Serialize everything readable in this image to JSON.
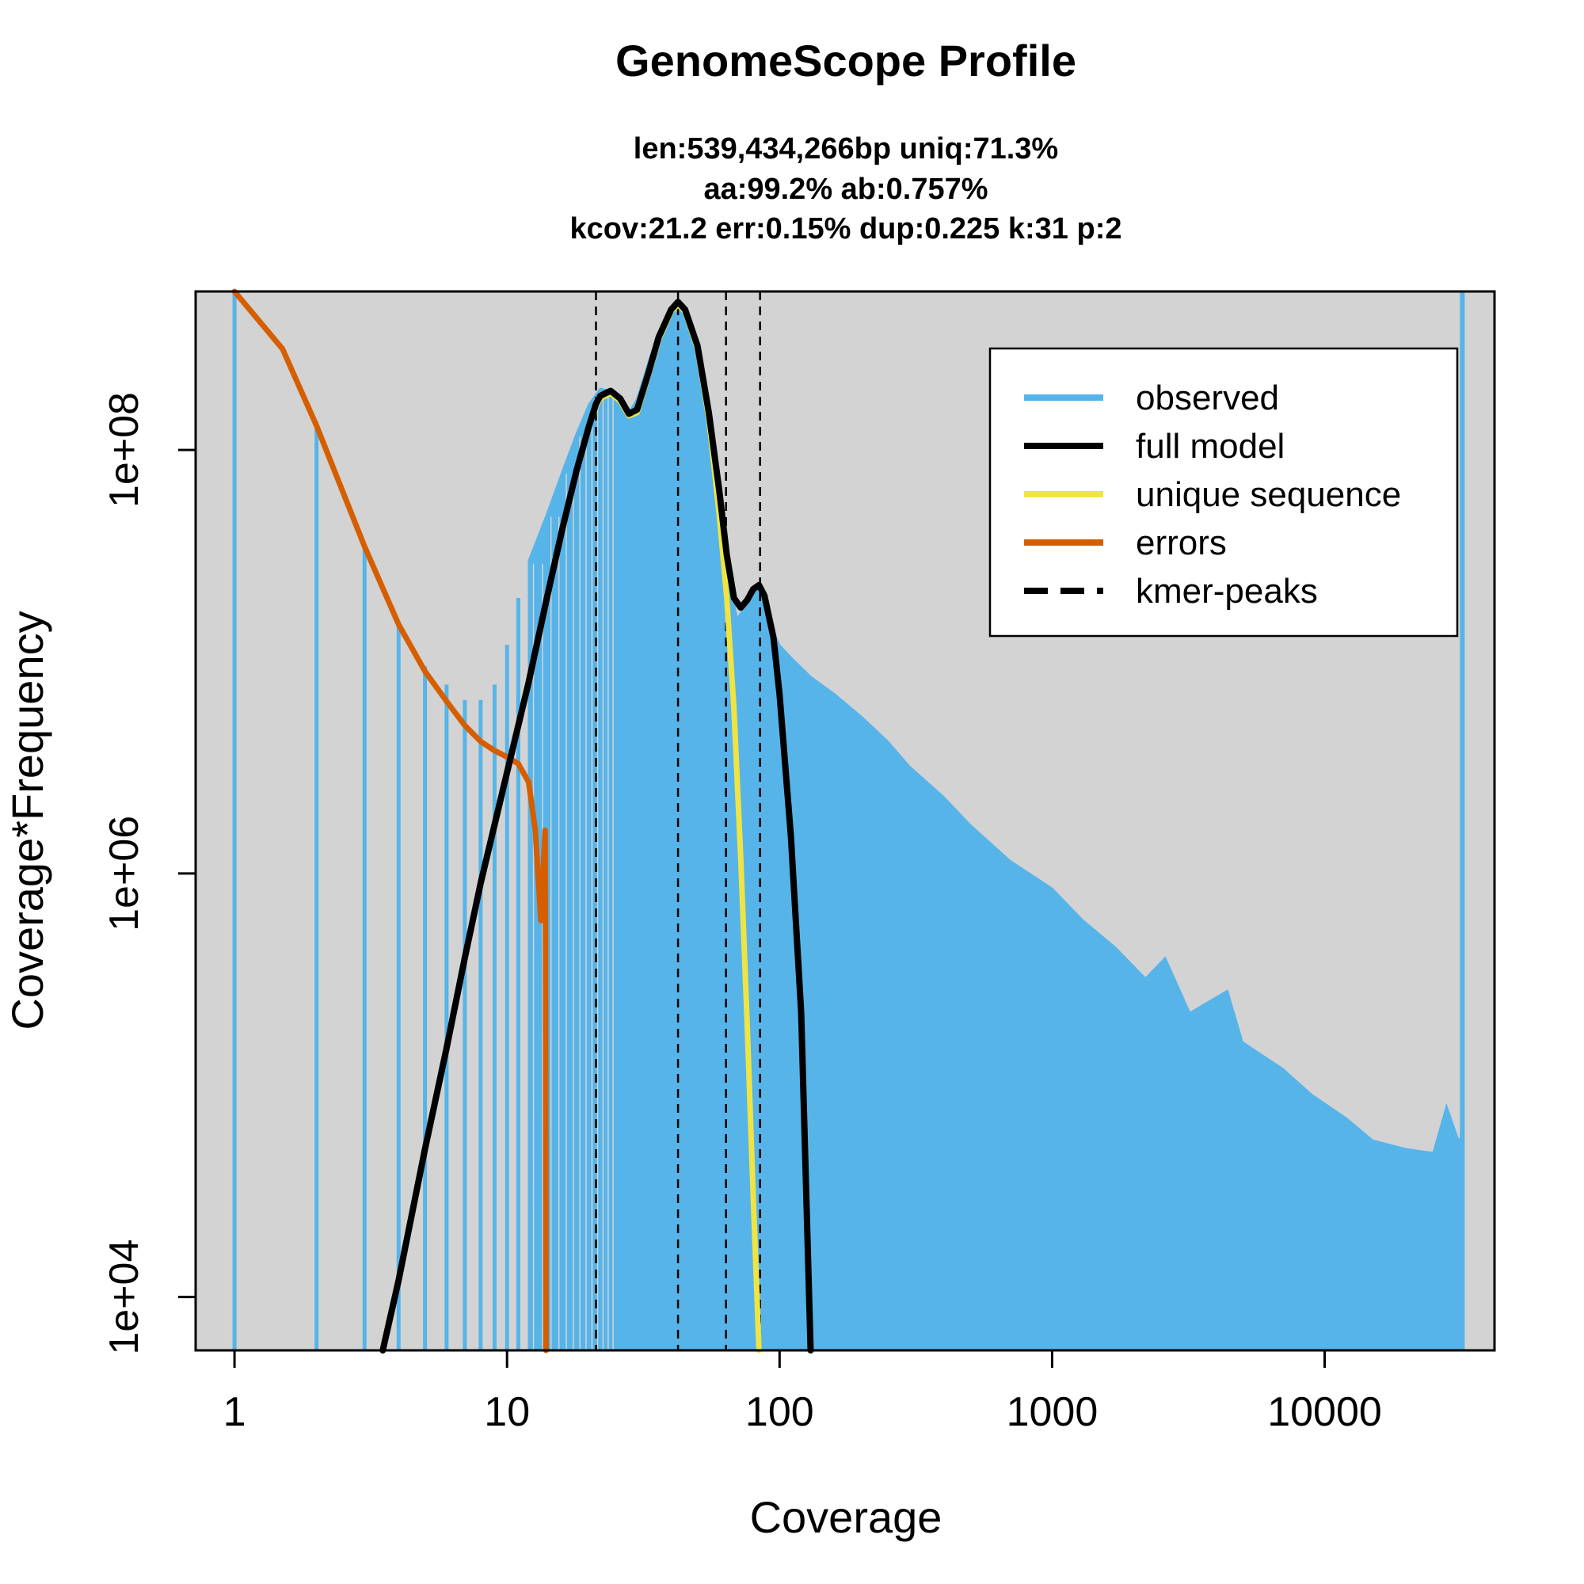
{
  "chart_data": {
    "type": "bar",
    "title": "GenomeScope Profile",
    "subtitle_lines": [
      "len:539,434,266bp uniq:71.3%",
      "aa:99.2% ab:0.757%",
      "kcov:21.2 err:0.15%  dup:0.225  k:31 p:2"
    ],
    "xlabel": "Coverage",
    "ylabel": "Coverage*Frequency",
    "x_scale": "log",
    "y_scale": "log",
    "xlim": [
      0.72,
      42000
    ],
    "ylim": [
      5600,
      560000000.0
    ],
    "x_ticks": [
      {
        "value": 1,
        "label": "1"
      },
      {
        "value": 10,
        "label": "10"
      },
      {
        "value": 100,
        "label": "100"
      },
      {
        "value": 1000,
        "label": "1000"
      },
      {
        "value": 10000,
        "label": "10000"
      }
    ],
    "y_ticks": [
      {
        "value": 10000,
        "label": "1e+04"
      },
      {
        "value": 1000000,
        "label": "1e+06"
      },
      {
        "value": 100000000,
        "label": "1e+08"
      }
    ],
    "background_color": "#d3d3d3",
    "kmer_peaks": [
      21.2,
      42.4,
      63.6,
      84.8
    ],
    "observed_bars": [
      {
        "x": 1,
        "y": 800000000.0
      },
      {
        "x": 2,
        "y": 130000000.0
      },
      {
        "x": 3,
        "y": 34000000.0
      },
      {
        "x": 4,
        "y": 15000000.0
      },
      {
        "x": 5,
        "y": 9500000.0
      },
      {
        "x": 6,
        "y": 7800000.0
      },
      {
        "x": 7,
        "y": 6600000.0
      },
      {
        "x": 8,
        "y": 6600000.0
      },
      {
        "x": 9,
        "y": 7800000.0
      },
      {
        "x": 10,
        "y": 12000000.0
      },
      {
        "x": 11,
        "y": 20000000.0
      }
    ],
    "observed_profile": [
      [
        12,
        30000000.0
      ],
      [
        14,
        50000000.0
      ],
      [
        16,
        80000000.0
      ],
      [
        18,
        120000000.0
      ],
      [
        20,
        165000000.0
      ],
      [
        22,
        195000000.0
      ],
      [
        24,
        190000000.0
      ],
      [
        26,
        160000000.0
      ],
      [
        28,
        150000000.0
      ],
      [
        30,
        175000000.0
      ],
      [
        33,
        260000000.0
      ],
      [
        36,
        360000000.0
      ],
      [
        40,
        460000000.0
      ],
      [
        42.4,
        490000000.0
      ],
      [
        46,
        430000000.0
      ],
      [
        50,
        300000000.0
      ],
      [
        55,
        160000000.0
      ],
      [
        60,
        60000000.0
      ],
      [
        65,
        25000000.0
      ],
      [
        70,
        16000000.0
      ],
      [
        76,
        19000000.0
      ],
      [
        82,
        23000000.0
      ],
      [
        86,
        21000000.0
      ],
      [
        92,
        15000000.0
      ],
      [
        100,
        12000000.0
      ],
      [
        110,
        10500000.0
      ],
      [
        130,
        8500000.0
      ],
      [
        160,
        7000000.0
      ],
      [
        200,
        5500000.0
      ],
      [
        250,
        4200000.0
      ],
      [
        300,
        3200000.0
      ],
      [
        400,
        2300000.0
      ],
      [
        500,
        1700000.0
      ],
      [
        700,
        1150000.0
      ],
      [
        1000,
        850000.0
      ],
      [
        1300,
        600000.0
      ],
      [
        1700,
        450000.0
      ],
      [
        2200,
        320000.0
      ],
      [
        2600,
        400000.0
      ],
      [
        3200,
        220000.0
      ],
      [
        4400,
        280000.0
      ],
      [
        5000,
        160000.0
      ],
      [
        7000,
        120000.0
      ],
      [
        9000,
        90000.0
      ],
      [
        12000,
        70000.0
      ],
      [
        15000,
        55000.0
      ],
      [
        20000,
        50000.0
      ],
      [
        25000,
        48000.0
      ],
      [
        28000,
        80000.0
      ],
      [
        31000,
        55000.0
      ],
      [
        32000,
        58000.0
      ]
    ],
    "observed_spike": {
      "x": 32000,
      "y": 950000000.0
    },
    "series": [
      {
        "name": "full model",
        "color": "#000000",
        "points": [
          [
            3.5,
            5600
          ],
          [
            4,
            12000.0
          ],
          [
            5,
            50000.0
          ],
          [
            6,
            150000.0
          ],
          [
            7,
            400000.0
          ],
          [
            8,
            900000.0
          ],
          [
            10,
            3000000.0
          ],
          [
            12,
            8000000.0
          ],
          [
            14,
            20000000.0
          ],
          [
            16,
            43000000.0
          ],
          [
            18,
            80000000.0
          ],
          [
            20,
            130000000.0
          ],
          [
            21.2,
            165000000.0
          ],
          [
            22,
            180000000.0
          ],
          [
            24,
            190000000.0
          ],
          [
            26,
            175000000.0
          ],
          [
            28,
            148000000.0
          ],
          [
            30,
            155000000.0
          ],
          [
            33,
            230000000.0
          ],
          [
            36,
            340000000.0
          ],
          [
            40,
            460000000.0
          ],
          [
            42.4,
            500000000.0
          ],
          [
            45,
            460000000.0
          ],
          [
            50,
            310000000.0
          ],
          [
            55,
            150000000.0
          ],
          [
            60,
            65000000.0
          ],
          [
            64,
            32000000.0
          ],
          [
            68,
            20000000.0
          ],
          [
            72,
            18000000.0
          ],
          [
            76,
            19500000.0
          ],
          [
            80,
            22000000.0
          ],
          [
            84,
            23000000.0
          ],
          [
            88,
            20500000.0
          ],
          [
            95,
            13000000.0
          ],
          [
            100,
            7000000.0
          ],
          [
            110,
            1500000.0
          ],
          [
            120,
            220000.0
          ],
          [
            130,
            5600
          ]
        ]
      },
      {
        "name": "unique sequence",
        "color": "#f0e442",
        "points": [
          [
            16,
            43000000.0
          ],
          [
            18,
            80000000.0
          ],
          [
            20,
            130000000.0
          ],
          [
            21.2,
            160000000.0
          ],
          [
            22,
            175000000.0
          ],
          [
            24,
            185000000.0
          ],
          [
            26,
            170000000.0
          ],
          [
            28,
            145000000.0
          ],
          [
            30,
            150000000.0
          ],
          [
            33,
            225000000.0
          ],
          [
            36,
            330000000.0
          ],
          [
            40,
            450000000.0
          ],
          [
            42.4,
            485000000.0
          ],
          [
            45,
            450000000.0
          ],
          [
            50,
            300000000.0
          ],
          [
            55,
            140000000.0
          ],
          [
            60,
            50000000.0
          ],
          [
            64,
            20000000.0
          ],
          [
            68,
            6000000.0
          ],
          [
            72,
            1200000.0
          ],
          [
            76,
            200000.0
          ],
          [
            80,
            30000.0
          ],
          [
            84,
            5600
          ]
        ]
      },
      {
        "name": "errors",
        "color": "#d55e00",
        "points": [
          [
            1,
            800000000.0
          ],
          [
            1.5,
            300000000.0
          ],
          [
            2,
            130000000.0
          ],
          [
            3,
            35000000.0
          ],
          [
            4,
            15000000.0
          ],
          [
            5,
            9000000.0
          ],
          [
            6,
            6500000.0
          ],
          [
            7,
            5000000.0
          ],
          [
            8,
            4200000.0
          ],
          [
            9,
            3800000.0
          ],
          [
            10,
            3550000.0
          ],
          [
            11,
            3300000.0
          ],
          [
            12,
            2700000.0
          ],
          [
            12.7,
            1600000.0
          ],
          [
            13.3,
            600000.0
          ],
          [
            13.8,
            1600000.0
          ],
          [
            13.85,
            400000.0
          ],
          [
            13.9,
            5600
          ]
        ]
      }
    ],
    "legend": {
      "placement": "top-right",
      "entries": [
        {
          "label": "observed",
          "color": "#56b4e9",
          "style": "solid"
        },
        {
          "label": "full model",
          "color": "#000000",
          "style": "solid"
        },
        {
          "label": "unique sequence",
          "color": "#f0e442",
          "style": "solid"
        },
        {
          "label": "errors",
          "color": "#d55e00",
          "style": "solid"
        },
        {
          "label": "kmer-peaks",
          "color": "#000000",
          "style": "dashed"
        }
      ]
    }
  }
}
